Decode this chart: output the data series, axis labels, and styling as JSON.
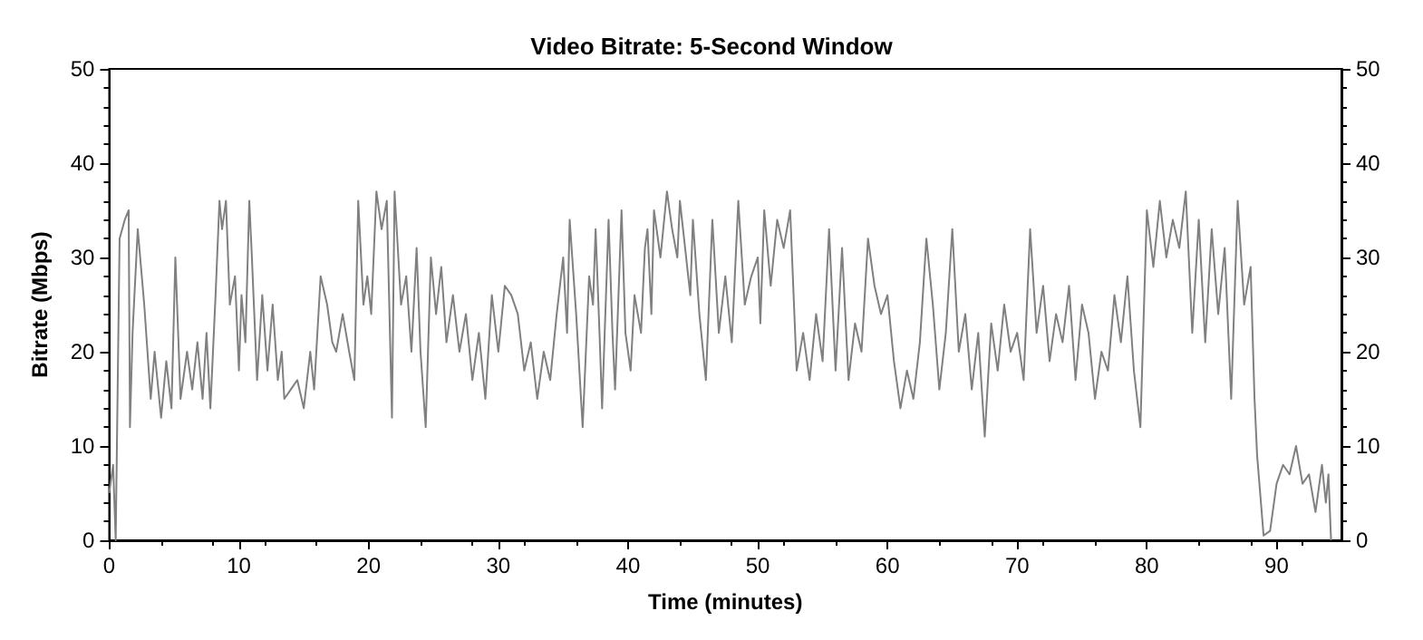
{
  "chart_data": {
    "type": "line",
    "title": "Video Bitrate: 5-Second Window",
    "xlabel": "Time (minutes)",
    "ylabel": "Bitrate (Mbps)",
    "xlim": [
      0,
      95
    ],
    "xticks": [
      0,
      10,
      20,
      30,
      40,
      50,
      60,
      70,
      80,
      90
    ],
    "ylim": [
      0,
      50
    ],
    "yticks": [
      0,
      10,
      20,
      30,
      40,
      50
    ],
    "y2lim": [
      0,
      50
    ],
    "y2ticks": [
      0,
      10,
      20,
      30,
      40,
      50
    ],
    "grid": false,
    "marker": "none",
    "line_style": "solid",
    "series": [
      {
        "color": "#808080",
        "x": [
          0,
          0.3,
          0.5,
          0.8,
          1.2,
          1.5,
          1.6,
          1.8,
          2.2,
          2.7,
          3.2,
          3.5,
          4,
          4.4,
          4.8,
          5.1,
          5.5,
          6,
          6.4,
          6.8,
          7.2,
          7.5,
          7.8,
          8.2,
          8.5,
          8.7,
          9,
          9.3,
          9.7,
          10,
          10.2,
          10.5,
          10.8,
          11,
          11.4,
          11.8,
          12.2,
          12.6,
          13,
          13.3,
          13.5,
          14,
          14.5,
          15,
          15.5,
          15.8,
          16.3,
          16.8,
          17.2,
          17.5,
          18,
          18.5,
          18.9,
          19.2,
          19.6,
          19.9,
          20.2,
          20.6,
          21,
          21.4,
          21.8,
          22,
          22.5,
          22.9,
          23.3,
          23.7,
          24,
          24.4,
          24.8,
          25.2,
          25.6,
          26,
          26.5,
          27,
          27.5,
          28,
          28.5,
          29,
          29.5,
          30,
          30.5,
          31,
          31.5,
          32,
          32.5,
          33,
          33.5,
          34,
          34.5,
          35,
          35.3,
          35.5,
          36,
          36.5,
          37,
          37.3,
          37.5,
          37.8,
          38,
          38.5,
          38.8,
          39,
          39.5,
          39.8,
          40.2,
          40.5,
          41,
          41.3,
          41.5,
          41.8,
          42,
          42.5,
          43,
          43.4,
          43.8,
          44,
          44.4,
          44.8,
          45,
          45.5,
          46,
          46.5,
          47,
          47.5,
          48,
          48.5,
          49,
          49.5,
          50,
          50.2,
          50.5,
          51,
          51.5,
          52,
          52.5,
          53,
          53.5,
          54,
          54.5,
          55,
          55.5,
          56,
          56.5,
          57,
          57.5,
          58,
          58.5,
          59,
          59.5,
          60,
          60.5,
          61,
          61.5,
          62,
          62.5,
          63,
          63.5,
          64,
          64.5,
          65,
          65.5,
          66,
          66.5,
          67,
          67.5,
          68,
          68.5,
          69,
          69.5,
          70,
          70.5,
          71,
          71.5,
          72,
          72.5,
          73,
          73.5,
          74,
          74.5,
          75,
          75.5,
          76,
          76.5,
          77,
          77.5,
          78,
          78.5,
          79,
          79.5,
          80,
          80.5,
          81,
          81.5,
          82,
          82.5,
          83,
          83.5,
          84,
          84.5,
          85,
          85.5,
          86,
          86.5,
          87,
          87.5,
          88,
          88.3,
          88.5,
          89,
          89.5,
          90,
          90.5,
          91,
          91.5,
          92,
          92.5,
          93,
          93.5,
          93.8,
          94,
          94.2
        ],
        "values": [
          5,
          8,
          0,
          32,
          34,
          35,
          12,
          22,
          33,
          25,
          15,
          20,
          13,
          19,
          14,
          30,
          15,
          20,
          16,
          21,
          15,
          22,
          14,
          26,
          36,
          33,
          36,
          25,
          28,
          18,
          26,
          21,
          36,
          30,
          17,
          26,
          18,
          25,
          17,
          20,
          15,
          16,
          17,
          14,
          20,
          16,
          28,
          25,
          21,
          20,
          24,
          20,
          17,
          36,
          25,
          28,
          24,
          37,
          33,
          36,
          13,
          37,
          25,
          28,
          20,
          31,
          20,
          12,
          30,
          24,
          29,
          21,
          26,
          20,
          24,
          17,
          22,
          15,
          26,
          20,
          27,
          26,
          24,
          18,
          21,
          15,
          20,
          17,
          24,
          30,
          22,
          34,
          24,
          12,
          28,
          25,
          33,
          22,
          14,
          34,
          22,
          16,
          35,
          22,
          18,
          26,
          22,
          31,
          33,
          24,
          35,
          30,
          37,
          33,
          30,
          36,
          31,
          26,
          34,
          24,
          17,
          34,
          22,
          28,
          21,
          36,
          25,
          28,
          30,
          23,
          35,
          27,
          34,
          31,
          35,
          18,
          22,
          17,
          24,
          19,
          33,
          18,
          31,
          17,
          23,
          20,
          32,
          27,
          24,
          26,
          19,
          14,
          18,
          15,
          21,
          32,
          25,
          16,
          22,
          33,
          20,
          24,
          16,
          22,
          11,
          23,
          18,
          25,
          20,
          22,
          17,
          33,
          22,
          27,
          19,
          24,
          21,
          27,
          17,
          25,
          22,
          15,
          20,
          18,
          26,
          21,
          28,
          18,
          12,
          35,
          29,
          36,
          30,
          34,
          31,
          37,
          22,
          34,
          21,
          33,
          24,
          31,
          15,
          36,
          25,
          29,
          15,
          9,
          0.5,
          1,
          6,
          8,
          7,
          10,
          6,
          7,
          3,
          8,
          4,
          7,
          0
        ]
      }
    ]
  }
}
